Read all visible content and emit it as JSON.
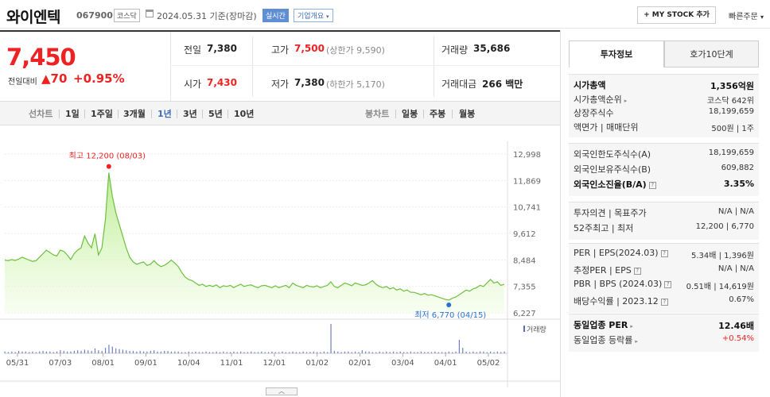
{
  "header": {
    "name": "와이엔텍",
    "code": "067900",
    "market": "코스닥",
    "date": "2024.05.31",
    "basis": "기준(장마감)",
    "realtime": "실시간",
    "company_info": "기업개요",
    "mystock": "+ MY STOCK 추가",
    "quick_order": "빠른주문"
  },
  "quote": {
    "price": "7,450",
    "change_label": "전일대비",
    "change": "▲70",
    "change_pct": "+0.95%",
    "prev_label": "전일",
    "prev": "7,380",
    "open_label": "시가",
    "open": "7,430",
    "high_label": "고가",
    "high": "7,500",
    "upper_limit": "(상한가 9,590)",
    "low_label": "저가",
    "low": "7,380",
    "lower_limit": "(하한가 5,170)",
    "volume_label": "거래량",
    "volume": "35,686",
    "amount_label": "거래대금",
    "amount": "266 백만"
  },
  "periods": {
    "line_label": "선차트",
    "line_tabs": [
      "1일",
      "1주일",
      "3개월",
      "1년",
      "3년",
      "5년",
      "10년"
    ],
    "active": "1년",
    "candle_label": "봉차트",
    "candle_tabs": [
      "일봉",
      "주봉",
      "월봉"
    ]
  },
  "chart_data": {
    "type": "area",
    "title": "",
    "y_ticks": [
      "12,998",
      "11,869",
      "10,741",
      "9,612",
      "8,484",
      "7,355",
      "6,227"
    ],
    "ylim": [
      6227,
      12998
    ],
    "x_ticks": [
      "05/31",
      "07/03",
      "08/01",
      "09/01",
      "10/04",
      "11/01",
      "12/01",
      "01/02",
      "02/01",
      "03/04",
      "04/01",
      "05/02"
    ],
    "high_annotation": "최고 12,200 (08/03)",
    "low_annotation": "최저 6,770 (04/15)",
    "volume_label": "거래량",
    "series": [
      {
        "values": [
          8480,
          8450,
          8500,
          8460,
          8520,
          8600,
          8540,
          8480,
          8420,
          8450,
          8600,
          8750,
          8900,
          8800,
          8700,
          8650,
          8900,
          8850,
          8700,
          8500,
          8750,
          8900,
          9000,
          9500,
          9200,
          9000,
          9600,
          8700,
          9000,
          10200,
          12200,
          11200,
          10500,
          10000,
          9500,
          9000,
          8600,
          8400,
          8300,
          8350,
          8400,
          8250,
          8300,
          8450,
          8300,
          8200,
          8250,
          8350,
          8480,
          8350,
          8200,
          7950,
          7750,
          7650,
          7600,
          7500,
          7400,
          7450,
          7350,
          7400,
          7350,
          7420,
          7300,
          7380,
          7350,
          7400,
          7300,
          7380,
          7450,
          7350,
          7400,
          7420,
          7350,
          7300,
          7380,
          7400,
          7350,
          7300,
          7380,
          7300,
          7350,
          7400,
          7300,
          7500,
          7400,
          7350,
          7300,
          7400,
          7350,
          7330,
          7380,
          7300,
          7350,
          7400,
          7550,
          7350,
          7300,
          7400,
          7500,
          7450,
          7380,
          7500,
          7450,
          7400,
          7420,
          7500,
          7600,
          7450,
          7350,
          7300,
          7350,
          7250,
          7300,
          7200,
          7250,
          7150,
          7200,
          7100,
          7100,
          7050,
          7000,
          7050,
          6980,
          7000,
          6950,
          6900,
          6850,
          6800,
          6770,
          6850,
          6900,
          7000,
          7100,
          7200,
          7150,
          7250,
          7300,
          7400,
          7350,
          7500,
          7650,
          7500,
          7550,
          7400,
          7450
        ]
      }
    ],
    "volume": [
      3,
      2,
      3,
      2,
      4,
      3,
      3,
      2,
      3,
      2,
      3,
      4,
      3,
      3,
      2,
      3,
      5,
      4,
      3,
      3,
      4,
      5,
      4,
      6,
      5,
      4,
      8,
      5,
      4,
      9,
      14,
      11,
      8,
      7,
      6,
      5,
      4,
      4,
      3,
      4,
      3,
      3,
      4,
      5,
      3,
      3,
      4,
      4,
      3,
      3,
      3,
      2,
      2,
      3,
      2,
      3,
      2,
      2,
      3,
      2,
      2,
      3,
      2,
      3,
      2,
      2,
      3,
      2,
      3,
      2,
      2,
      3,
      2,
      2,
      3,
      2,
      2,
      3,
      2,
      2,
      3,
      2,
      2,
      3,
      2,
      2,
      3,
      2,
      2,
      3,
      2,
      2,
      3,
      2,
      48,
      4,
      3,
      2,
      3,
      3,
      2,
      3,
      2,
      5,
      3,
      3,
      2,
      2,
      3,
      2,
      3,
      2,
      3,
      2,
      3,
      2,
      2,
      3,
      2,
      2,
      3,
      2,
      2,
      2,
      3,
      2,
      2,
      2,
      3,
      2,
      3,
      22,
      9,
      3,
      2,
      3,
      2,
      3,
      3,
      2,
      3,
      2,
      3,
      2,
      3
    ]
  },
  "right_panel": {
    "tab_info": "투자정보",
    "tab_quote": "호가10단계",
    "group1": [
      {
        "label": "시가총액",
        "value": "1,356억원",
        "bold": true
      },
      {
        "label": "시가총액순위",
        "value": "코스닥 642위",
        "arrow": true
      },
      {
        "label": "상장주식수",
        "value": "18,199,659"
      },
      {
        "label": "액면가 | 매매단위",
        "value": "500원 | 1주"
      }
    ],
    "group2": [
      {
        "label": "외국인한도주식수(A)",
        "value": "18,199,659"
      },
      {
        "label": "외국인보유주식수(B)",
        "value": "609,882"
      },
      {
        "label": "외국인소진율(B/A)",
        "value": "3.35%",
        "bold": true,
        "help": true
      }
    ],
    "group3": [
      {
        "label": "투자의견 | 목표주가",
        "value": "N/A | N/A"
      },
      {
        "label": "52주최고 | 최저",
        "value": "12,200 | 6,770"
      }
    ],
    "group4": [
      {
        "label": "PER | EPS(2024.03)",
        "value": "5.34배 | 1,396원",
        "help": true
      },
      {
        "label": "추정PER | EPS",
        "value": "N/A | N/A",
        "help": true
      },
      {
        "label": "PBR | BPS (2024.03)",
        "value": "0.51배 | 14,619원",
        "help": true
      },
      {
        "label": "배당수익률 | 2023.12",
        "value": "0.67%",
        "help": true
      }
    ],
    "group5": [
      {
        "label": "동일업종 PER",
        "value": "12.46배",
        "bold": true,
        "arrow": true
      },
      {
        "label": "동일업종 등락률",
        "value": "+0.54%",
        "red": true,
        "arrow": true
      }
    ]
  }
}
